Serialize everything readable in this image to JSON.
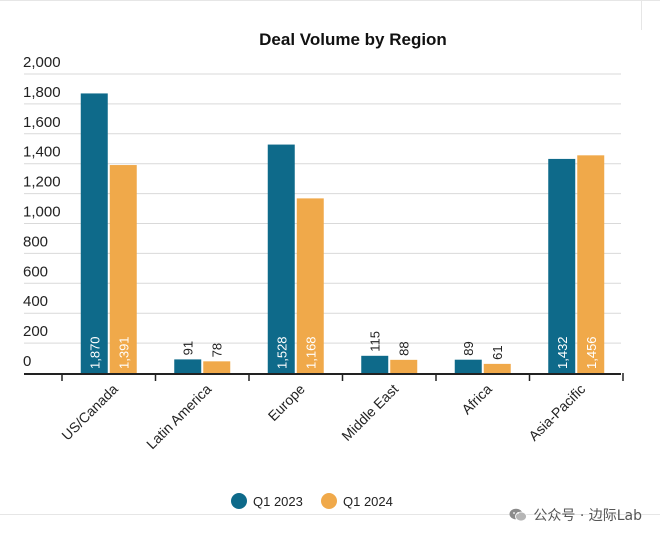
{
  "chart_data": {
    "type": "bar",
    "title": "Deal Volume by Region",
    "categories": [
      "US/Canada",
      "Latin America",
      "Europe",
      "Middle East",
      "Africa",
      "Asia-Pacific"
    ],
    "series": [
      {
        "name": "Q1 2023",
        "color": "#0e6a8a",
        "values": [
          1870,
          91,
          1528,
          115,
          89,
          1432
        ],
        "labels": [
          "1,870",
          "91",
          "1,528",
          "115",
          "89",
          "1,432"
        ]
      },
      {
        "name": "Q1 2024",
        "color": "#f0a94a",
        "values": [
          1391,
          78,
          1168,
          88,
          61,
          1456
        ],
        "labels": [
          "1,391",
          "78",
          "1,168",
          "88",
          "61",
          "1,456"
        ]
      }
    ],
    "yticks": [
      "0",
      "200",
      "400",
      "600",
      "800",
      "1,000",
      "1,200",
      "1,400",
      "1,600",
      "1,800",
      "2,000"
    ],
    "ylim": [
      0,
      2000
    ],
    "grid": true,
    "legend": "bottom-center"
  },
  "watermark": {
    "text": "公众号 · 边际Lab",
    "icon": "wechat-icon"
  }
}
